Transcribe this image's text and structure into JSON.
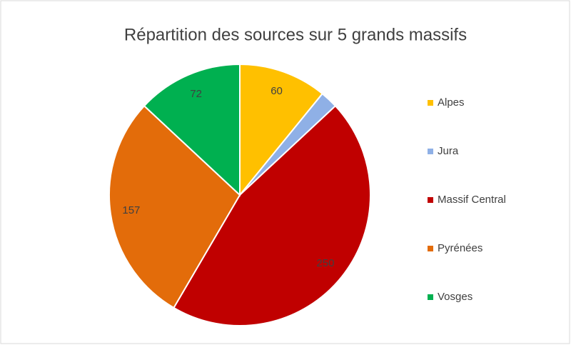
{
  "chart_data": {
    "type": "pie",
    "title": "Répartition des sources sur 5 grands massifs",
    "categories": [
      "Alpes",
      "Jura",
      "Massif Central",
      "Pyrénées",
      "Vosges"
    ],
    "values": [
      60,
      12,
      250,
      157,
      72
    ],
    "value_labels": [
      "60",
      null,
      "250",
      "157",
      "72"
    ],
    "colors": [
      "#ffc000",
      "#8fb0e6",
      "#c00000",
      "#e36c0a",
      "#00b050"
    ],
    "legend": "right"
  }
}
